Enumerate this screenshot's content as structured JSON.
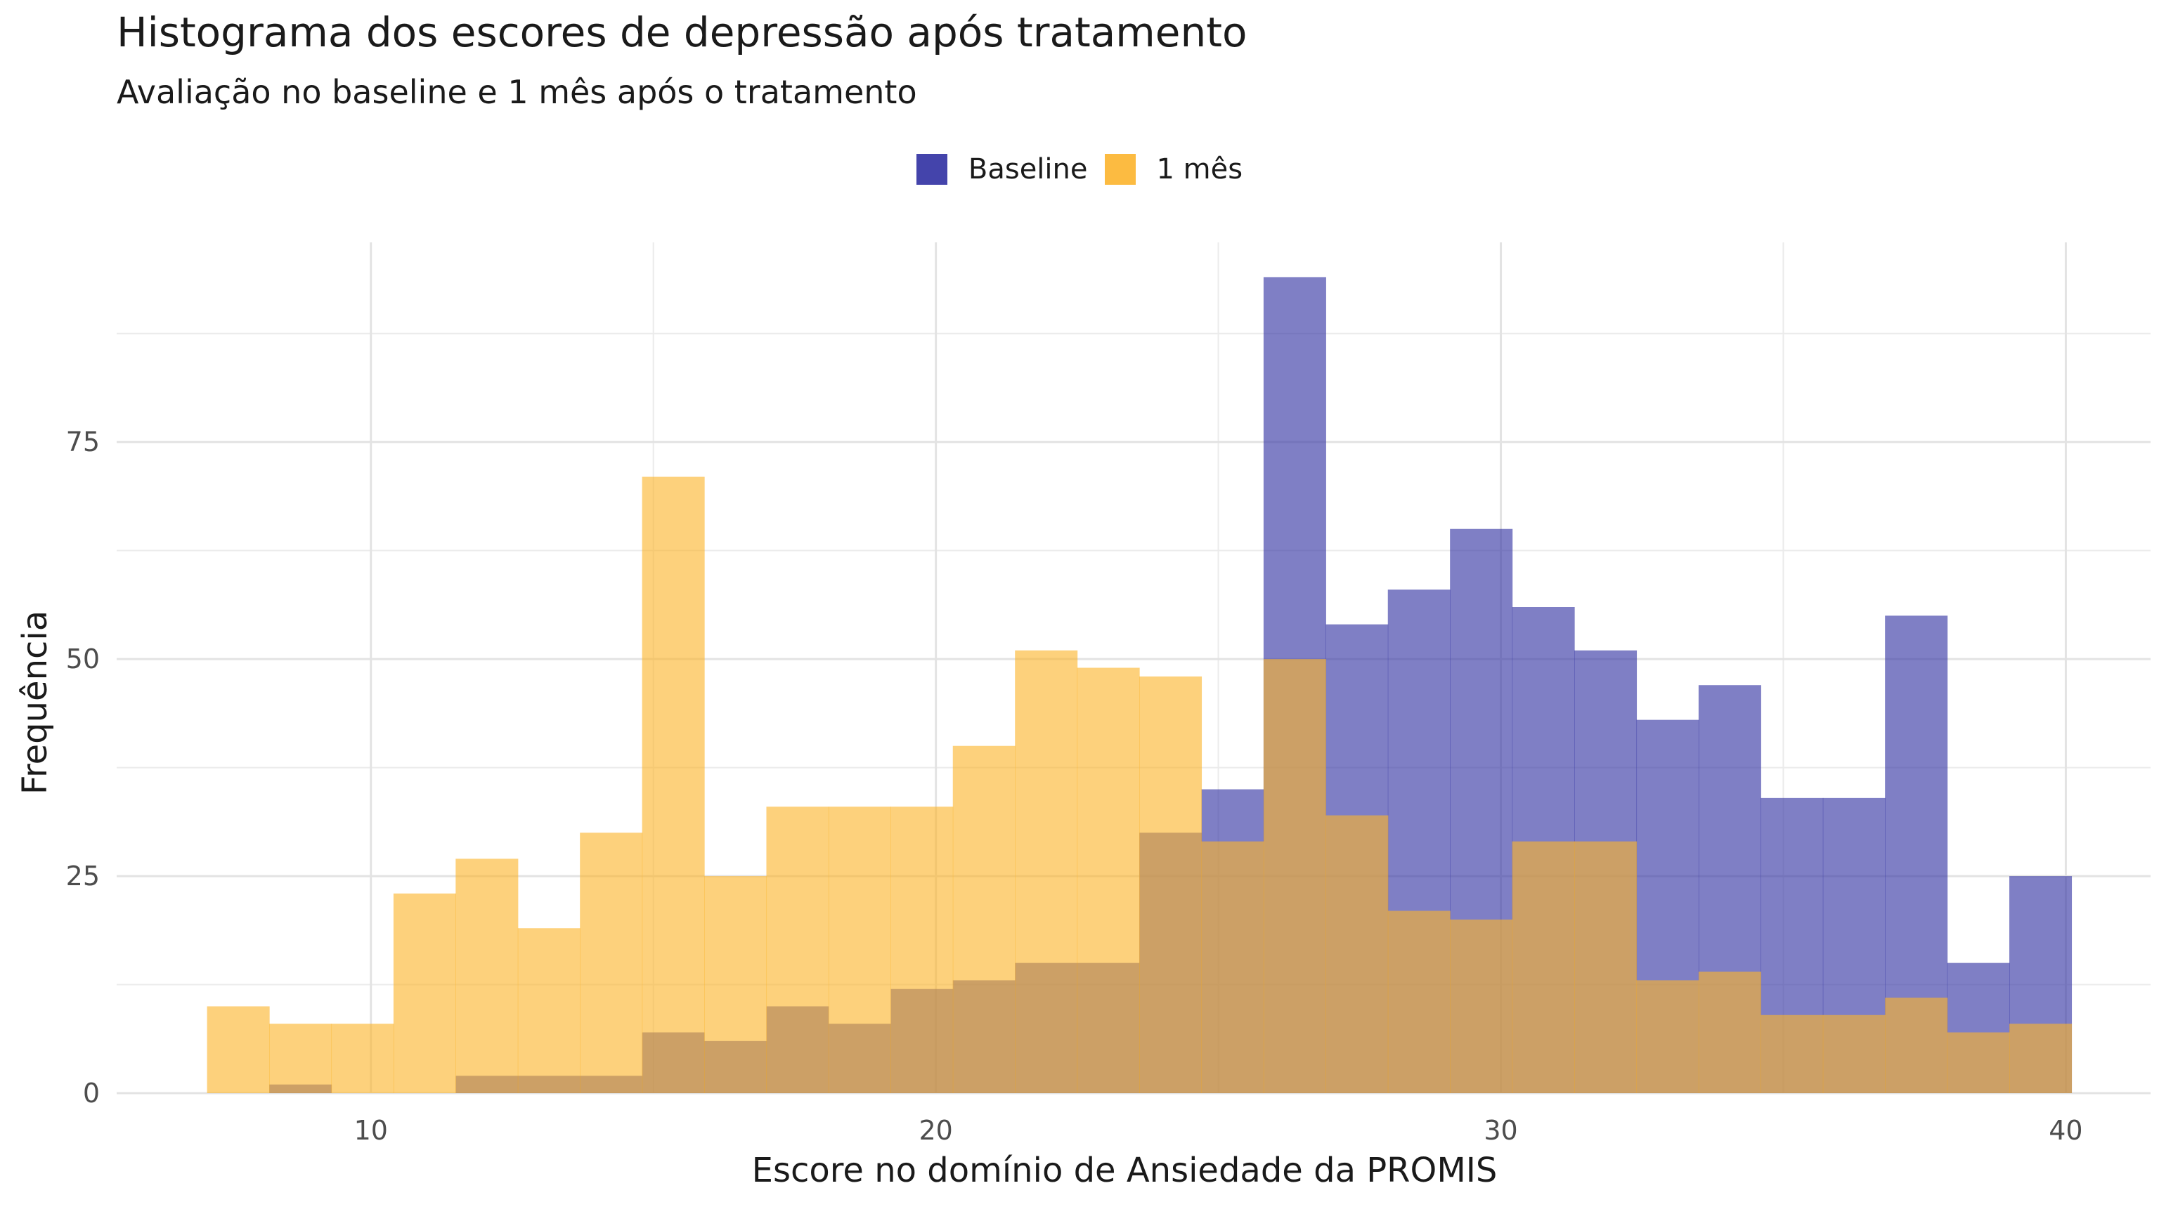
{
  "chart_data": {
    "type": "histogram",
    "title": "Histograma dos escores de depressão após tratamento",
    "subtitle": "Avaliação no baseline e 1 mês após o tratamento",
    "xlabel": "Escore no domínio de Ansiedade da PROMIS",
    "ylabel": "Frequência",
    "xlim": [
      5.5,
      41.5
    ],
    "ylim": [
      0,
      98
    ],
    "x_ticks": [
      10,
      20,
      30,
      40
    ],
    "y_ticks": [
      0,
      25,
      50,
      75
    ],
    "grid": true,
    "legend_position": "top",
    "bin_width": 1.1,
    "bin_start": 7.1,
    "series": [
      {
        "name": "Baseline",
        "color": "#3a3aa6",
        "values": [
          0,
          1,
          0,
          0,
          2,
          2,
          2,
          7,
          6,
          10,
          8,
          12,
          13,
          15,
          15,
          30,
          35,
          94,
          54,
          58,
          65,
          56,
          51,
          43,
          47,
          34,
          34,
          55,
          15,
          25
        ]
      },
      {
        "name": "1 mês",
        "color": "#fcb42c",
        "values": [
          10,
          8,
          8,
          23,
          27,
          19,
          30,
          71,
          25,
          33,
          33,
          33,
          40,
          51,
          49,
          48,
          29,
          50,
          32,
          21,
          20,
          29,
          29,
          13,
          14,
          9,
          9,
          11,
          7,
          8
        ]
      }
    ]
  }
}
